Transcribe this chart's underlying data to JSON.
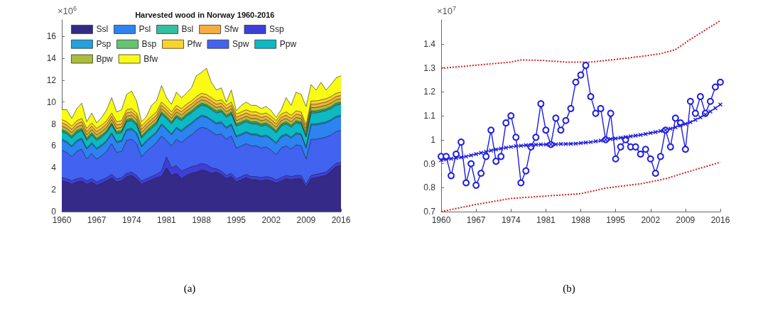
{
  "chart_data": [
    {
      "type": "area",
      "title": "Harvested wood in Norway 1960-2016",
      "ylabel": "×10$^{6}$",
      "stacked": true,
      "legend": "top left",
      "grid": false,
      "annotations": [
        "(a)"
      ],
      "xlim": [
        1960,
        2016
      ],
      "xticks": [
        1960,
        1967,
        1974,
        1981,
        1988,
        1995,
        2002,
        2009,
        2016
      ],
      "ylim": [
        0,
        17.5
      ],
      "yticks": [
        0,
        2,
        4,
        6,
        8,
        10,
        12,
        14,
        16
      ],
      "x": [
        1960,
        1961,
        1962,
        1963,
        1964,
        1965,
        1966,
        1967,
        1968,
        1969,
        1970,
        1971,
        1972,
        1973,
        1974,
        1975,
        1976,
        1977,
        1978,
        1979,
        1980,
        1981,
        1982,
        1983,
        1984,
        1985,
        1986,
        1987,
        1988,
        1989,
        1990,
        1991,
        1992,
        1993,
        1994,
        1995,
        1996,
        1997,
        1998,
        1999,
        2000,
        2001,
        2002,
        2003,
        2004,
        2005,
        2006,
        2007,
        2008,
        2009,
        2010,
        2011,
        2012,
        2013,
        2014,
        2015,
        2016
      ],
      "series": [
        {
          "name": "Ssl",
          "color": "#352a87",
          "values": [
            2.8,
            2.7,
            2.5,
            2.7,
            2.8,
            2.5,
            2.7,
            2.4,
            2.6,
            2.8,
            3.1,
            2.7,
            2.8,
            3.2,
            3.3,
            3.0,
            2.5,
            2.7,
            2.9,
            3.1,
            3.2,
            4.0,
            3.3,
            3.5,
            3.0,
            3.3,
            3.5,
            3.6,
            3.8,
            3.7,
            3.5,
            3.6,
            3.4,
            3.0,
            3.2,
            2.7,
            2.9,
            3.1,
            2.9,
            2.9,
            2.8,
            2.9,
            2.8,
            2.6,
            2.8,
            3.0,
            2.9,
            3.0,
            3.0,
            2.2,
            3.0,
            3.1,
            3.2,
            3.3,
            3.7,
            4.1,
            4.2
          ]
        },
        {
          "name": "Ssp",
          "color": "#3e3fd8",
          "values": [
            0.3,
            0.3,
            0.3,
            0.3,
            0.3,
            0.3,
            0.3,
            0.3,
            0.3,
            0.3,
            0.3,
            0.3,
            0.3,
            0.3,
            0.3,
            0.3,
            0.3,
            0.3,
            0.3,
            0.3,
            0.5,
            1.0,
            0.7,
            0.7,
            0.7,
            0.6,
            0.6,
            0.6,
            0.6,
            0.6,
            0.5,
            0.3,
            0.3,
            0.3,
            0.3,
            0.3,
            0.3,
            0.3,
            0.3,
            0.3,
            0.3,
            0.3,
            0.3,
            0.3,
            0.3,
            0.3,
            0.3,
            0.3,
            0.3,
            0.3,
            0.3,
            0.3,
            0.3,
            0.3,
            0.3,
            0.3,
            0.3
          ]
        },
        {
          "name": "Spw",
          "color": "#4262f0",
          "values": [
            2.5,
            2.4,
            2.2,
            2.5,
            2.6,
            2.0,
            2.3,
            2.1,
            2.2,
            2.4,
            2.8,
            2.4,
            2.4,
            3.0,
            3.0,
            2.9,
            2.2,
            2.5,
            2.7,
            2.9,
            3.2,
            1.5,
            2.0,
            2.4,
            2.6,
            2.8,
            2.9,
            3.2,
            3.3,
            3.3,
            3.3,
            3.1,
            3.4,
            3.3,
            3.4,
            2.8,
            2.8,
            2.8,
            2.8,
            2.8,
            2.7,
            2.7,
            2.5,
            2.3,
            2.7,
            2.7,
            2.5,
            2.8,
            2.7,
            2.3,
            3.3,
            3.2,
            3.2,
            3.2,
            3.0,
            2.9,
            2.9
          ]
        },
        {
          "name": "Psl",
          "color": "#2d83f0",
          "values": [
            0.9,
            0.9,
            0.9,
            0.9,
            0.9,
            0.9,
            0.9,
            0.9,
            0.9,
            0.9,
            0.9,
            0.9,
            0.9,
            0.9,
            0.9,
            0.9,
            0.9,
            0.9,
            0.9,
            0.9,
            1.0,
            1.0,
            1.0,
            1.0,
            1.0,
            1.0,
            1.0,
            1.0,
            1.0,
            1.0,
            1.0,
            1.0,
            1.0,
            1.0,
            1.0,
            1.0,
            1.0,
            1.0,
            1.0,
            1.0,
            1.0,
            1.0,
            1.0,
            1.0,
            1.0,
            1.0,
            1.0,
            1.0,
            1.0,
            1.0,
            1.3,
            1.3,
            1.3,
            1.3,
            1.3,
            1.3,
            1.3
          ]
        },
        {
          "name": "Psp",
          "color": "#22a2dc",
          "values": [
            0.1,
            0.1,
            0.1,
            0.1,
            0.1,
            0.1,
            0.1,
            0.1,
            0.1,
            0.1,
            0.1,
            0.1,
            0.1,
            0.1,
            0.1,
            0.1,
            0.1,
            0.1,
            0.1,
            0.1,
            0.1,
            0.1,
            0.1,
            0.1,
            0.1,
            0.1,
            0.1,
            0.1,
            0.1,
            0.1,
            0.1,
            0.1,
            0.1,
            0.1,
            0.1,
            0.1,
            0.1,
            0.1,
            0.1,
            0.1,
            0.1,
            0.1,
            0.1,
            0.1,
            0.1,
            0.1,
            0.1,
            0.1,
            0.1,
            0.1,
            0.1,
            0.1,
            0.1,
            0.1,
            0.1,
            0.1,
            0.1
          ]
        },
        {
          "name": "Ppw",
          "color": "#0db9c2",
          "values": [
            0.7,
            0.7,
            0.7,
            0.7,
            0.7,
            0.7,
            0.7,
            0.7,
            0.7,
            0.7,
            0.7,
            0.7,
            0.7,
            0.7,
            0.7,
            0.7,
            0.7,
            0.7,
            0.7,
            0.7,
            0.9,
            0.9,
            0.9,
            0.9,
            0.9,
            0.9,
            0.9,
            0.9,
            0.9,
            0.9,
            0.9,
            0.9,
            0.9,
            0.9,
            0.9,
            0.9,
            0.9,
            0.9,
            0.9,
            0.9,
            0.9,
            0.9,
            0.9,
            0.9,
            0.9,
            0.9,
            0.9,
            0.9,
            0.9,
            0.9,
            1.0,
            1.0,
            1.0,
            1.0,
            1.0,
            1.0,
            1.0
          ]
        },
        {
          "name": "Bsl",
          "color": "#33bf9f",
          "values": [
            0.1,
            0.1,
            0.1,
            0.1,
            0.1,
            0.1,
            0.1,
            0.1,
            0.1,
            0.1,
            0.1,
            0.1,
            0.1,
            0.1,
            0.1,
            0.1,
            0.1,
            0.1,
            0.1,
            0.1,
            0.1,
            0.1,
            0.1,
            0.1,
            0.1,
            0.1,
            0.1,
            0.1,
            0.1,
            0.1,
            0.1,
            0.1,
            0.1,
            0.1,
            0.1,
            0.1,
            0.1,
            0.1,
            0.1,
            0.1,
            0.1,
            0.1,
            0.1,
            0.1,
            0.1,
            0.1,
            0.1,
            0.1,
            0.1,
            0.1,
            0.1,
            0.1,
            0.1,
            0.1,
            0.1,
            0.1,
            0.1
          ]
        },
        {
          "name": "Bsp",
          "color": "#64c56e",
          "values": [
            0.1,
            0.1,
            0.1,
            0.1,
            0.1,
            0.1,
            0.1,
            0.1,
            0.1,
            0.1,
            0.1,
            0.1,
            0.1,
            0.1,
            0.1,
            0.1,
            0.1,
            0.1,
            0.1,
            0.1,
            0.1,
            0.1,
            0.1,
            0.1,
            0.1,
            0.1,
            0.1,
            0.1,
            0.1,
            0.1,
            0.1,
            0.1,
            0.1,
            0.1,
            0.1,
            0.1,
            0.1,
            0.1,
            0.1,
            0.1,
            0.1,
            0.1,
            0.1,
            0.1,
            0.1,
            0.1,
            0.1,
            0.1,
            0.1,
            0.1,
            0.1,
            0.1,
            0.1,
            0.1,
            0.1,
            0.1,
            0.1
          ]
        },
        {
          "name": "Bpw",
          "color": "#acbd3a",
          "values": [
            0.3,
            0.3,
            0.3,
            0.3,
            0.3,
            0.3,
            0.3,
            0.3,
            0.3,
            0.3,
            0.3,
            0.3,
            0.3,
            0.3,
            0.3,
            0.3,
            0.3,
            0.3,
            0.3,
            0.3,
            0.3,
            0.3,
            0.3,
            0.3,
            0.3,
            0.3,
            0.3,
            0.3,
            0.3,
            0.3,
            0.3,
            0.3,
            0.3,
            0.3,
            0.3,
            0.3,
            0.3,
            0.3,
            0.3,
            0.3,
            0.3,
            0.3,
            0.3,
            0.3,
            0.3,
            0.3,
            0.3,
            0.3,
            0.3,
            0.3,
            0.3,
            0.3,
            0.3,
            0.3,
            0.3,
            0.3,
            0.3
          ]
        },
        {
          "name": "Sfw",
          "color": "#f5ae3d",
          "values": [
            0.3,
            0.3,
            0.3,
            0.3,
            0.3,
            0.3,
            0.3,
            0.3,
            0.3,
            0.3,
            0.3,
            0.3,
            0.3,
            0.3,
            0.3,
            0.3,
            0.3,
            0.3,
            0.3,
            0.3,
            0.3,
            0.3,
            0.3,
            0.3,
            0.3,
            0.3,
            0.3,
            0.3,
            0.3,
            0.3,
            0.3,
            0.3,
            0.3,
            0.3,
            0.3,
            0.3,
            0.3,
            0.3,
            0.3,
            0.3,
            0.3,
            0.3,
            0.3,
            0.3,
            0.3,
            0.3,
            0.3,
            0.3,
            0.3,
            0.3,
            0.3,
            0.3,
            0.3,
            0.3,
            0.3,
            0.3,
            0.3
          ]
        },
        {
          "name": "Pfw",
          "color": "#f8d32e",
          "values": [
            0.3,
            0.3,
            0.3,
            0.3,
            0.3,
            0.3,
            0.3,
            0.3,
            0.3,
            0.3,
            0.3,
            0.3,
            0.3,
            0.3,
            0.3,
            0.3,
            0.3,
            0.3,
            0.3,
            0.3,
            0.3,
            0.3,
            0.3,
            0.3,
            0.3,
            0.3,
            0.3,
            0.3,
            0.3,
            0.3,
            0.3,
            0.3,
            0.3,
            0.3,
            0.3,
            0.3,
            0.3,
            0.3,
            0.3,
            0.3,
            0.3,
            0.3,
            0.3,
            0.3,
            0.3,
            0.3,
            0.3,
            0.3,
            0.3,
            0.3,
            0.3,
            0.3,
            0.3,
            0.3,
            0.3,
            0.3,
            0.3
          ]
        },
        {
          "name": "Bfw",
          "color": "#f9fb15",
          "values": [
            0.9,
            1.1,
            0.7,
            1.1,
            1.4,
            0.6,
            0.9,
            0.5,
            0.7,
            1.0,
            1.4,
            0.9,
            1.0,
            1.4,
            1.6,
            1.1,
            0.4,
            0.4,
            1.0,
            1.0,
            1.5,
            0.8,
            0.7,
            1.2,
            1.0,
            1.0,
            1.2,
            1.9,
            1.9,
            2.4,
            1.4,
            1.0,
            1.1,
            0.3,
            1.1,
            0.3,
            0.6,
            0.7,
            0.6,
            0.6,
            0.5,
            0.6,
            0.5,
            0.3,
            0.4,
            1.3,
            0.9,
            1.7,
            1.6,
            1.7,
            1.5,
            1.0,
            1.6,
            0.8,
            1.1,
            1.4,
            1.5
          ]
        }
      ]
    },
    {
      "type": "line",
      "ylabel": "×10$^{7}$",
      "legend": false,
      "grid": false,
      "annotations": [
        "(b)"
      ],
      "xlim": [
        1960,
        2016
      ],
      "xticks": [
        1960,
        1967,
        1974,
        1981,
        1988,
        1995,
        2002,
        2009,
        2016
      ],
      "ylim": [
        0.7,
        1.5
      ],
      "yticks": [
        0.7,
        0.8,
        0.9,
        1,
        1.1,
        1.2,
        1.3,
        1.4
      ],
      "x": [
        1960,
        1961,
        1962,
        1963,
        1964,
        1965,
        1966,
        1967,
        1968,
        1969,
        1970,
        1971,
        1972,
        1973,
        1974,
        1975,
        1976,
        1977,
        1978,
        1979,
        1980,
        1981,
        1982,
        1983,
        1984,
        1985,
        1986,
        1987,
        1988,
        1989,
        1990,
        1991,
        1992,
        1993,
        1994,
        1995,
        1996,
        1997,
        1998,
        1999,
        2000,
        2001,
        2002,
        2003,
        2004,
        2005,
        2006,
        2007,
        2008,
        2009,
        2010,
        2011,
        2012,
        2013,
        2014,
        2015,
        2016
      ],
      "series": [
        {
          "color": "#1c1ce0",
          "marker": "circle",
          "line_style": "solid",
          "values": [
            0.93,
            0.93,
            0.85,
            0.94,
            0.99,
            0.82,
            0.9,
            0.81,
            0.86,
            0.93,
            1.04,
            0.91,
            0.93,
            1.07,
            1.1,
            1.01,
            0.82,
            0.87,
            0.97,
            1.01,
            1.15,
            1.04,
            0.98,
            1.09,
            1.04,
            1.08,
            1.13,
            1.24,
            1.27,
            1.31,
            1.18,
            1.11,
            1.13,
            1.0,
            1.11,
            0.92,
            0.97,
            1.0,
            0.97,
            0.97,
            0.94,
            0.96,
            0.92,
            0.86,
            0.93,
            1.04,
            0.97,
            1.09,
            1.07,
            0.96,
            1.16,
            1.11,
            1.18,
            1.11,
            1.16,
            1.22,
            1.24
          ]
        },
        {
          "color": "#1c1ce0",
          "marker": "cross",
          "line_style": "solid",
          "values": [
            0.915,
            0.918,
            0.921,
            0.924,
            0.927,
            0.93,
            0.935,
            0.94,
            0.945,
            0.95,
            0.955,
            0.959,
            0.963,
            0.967,
            0.97,
            0.973,
            0.975,
            0.977,
            0.978,
            0.979,
            0.98,
            0.98,
            0.981,
            0.981,
            0.982,
            0.982,
            0.983,
            0.984,
            0.986,
            0.988,
            0.99,
            0.993,
            0.996,
            1.0,
            1.003,
            1.005,
            1.008,
            1.011,
            1.014,
            1.017,
            1.02,
            1.024,
            1.028,
            1.032,
            1.036,
            1.04,
            1.046,
            1.052,
            1.059,
            1.066,
            1.073,
            1.083,
            1.093,
            1.105,
            1.118,
            1.132,
            1.147
          ]
        },
        {
          "color": "#d42020",
          "marker": "none",
          "line_style": "dotted",
          "x": [
            1960,
            1967,
            1974,
            1976,
            1980,
            1985,
            1990,
            1995,
            2000,
            2004,
            2007,
            2010,
            2013,
            2016
          ],
          "values": [
            1.298,
            1.311,
            1.324,
            1.333,
            1.331,
            1.324,
            1.324,
            1.335,
            1.347,
            1.359,
            1.376,
            1.419,
            1.458,
            1.497
          ]
        },
        {
          "color": "#d42020",
          "marker": "none",
          "line_style": "dotted",
          "x": [
            1960,
            1967,
            1974,
            1981,
            1988,
            1993,
            2000,
            2005,
            2009,
            2016
          ],
          "values": [
            0.7,
            0.73,
            0.755,
            0.765,
            0.775,
            0.798,
            0.816,
            0.837,
            0.863,
            0.906
          ]
        }
      ]
    }
  ]
}
